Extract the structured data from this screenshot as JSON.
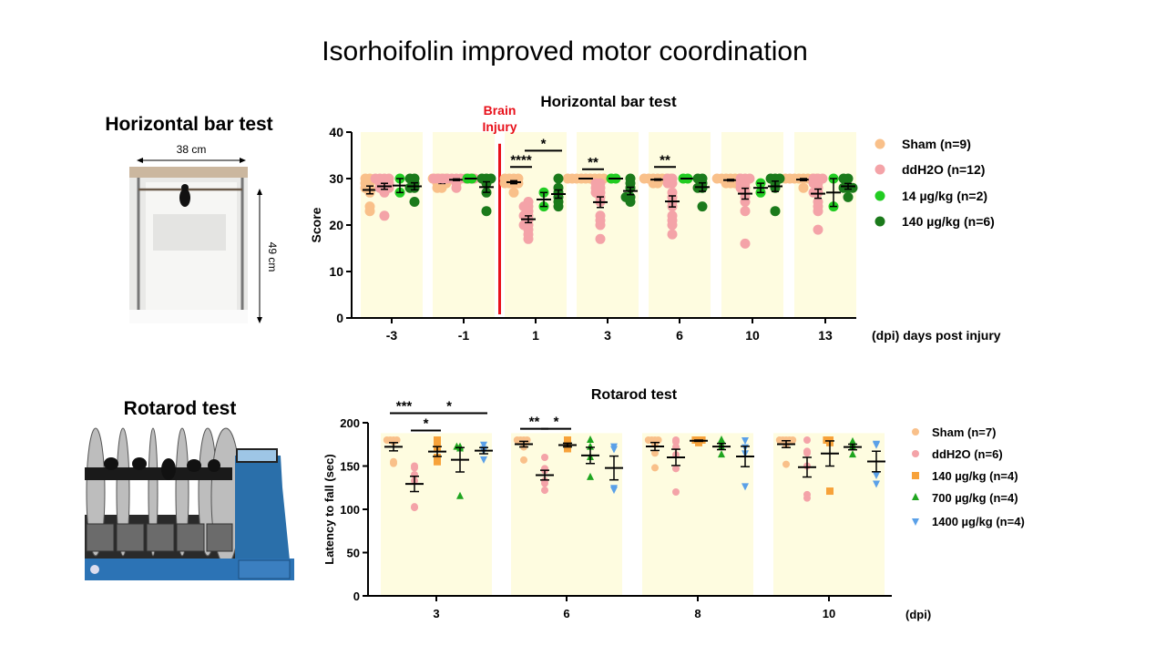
{
  "slide": {
    "title": "Isorhoifolin improved motor coordination",
    "horizontal_bar_label": "Horizontal bar test",
    "rotarod_label": "Rotarod test",
    "photo_width_label": "38 cm",
    "photo_height_label": "49 cm"
  },
  "chart_data": [
    {
      "type": "scatter",
      "title": "Horizontal bar test",
      "xlabel": "(dpi)  days post injury",
      "ylabel": "Score",
      "ylim": [
        0,
        40
      ],
      "yticks": [
        "0",
        "10",
        "20",
        "30",
        "40"
      ],
      "categories": [
        "-3",
        "-1",
        "1",
        "3",
        "6",
        "10",
        "13"
      ],
      "marker_annotation": {
        "label_line1": "Brain",
        "label_line2": "Injury",
        "between": [
          "-1",
          "1"
        ],
        "color": "#e8101a"
      },
      "legend_position": "right",
      "series": [
        {
          "name": "Sham (n=9)",
          "color": "#f9c08a",
          "marker": "circle",
          "values": [
            [
              30,
              29,
              28,
              27,
              24,
              23,
              30,
              29,
              28
            ],
            [
              30,
              30,
              29,
              29,
              28,
              30,
              30,
              29,
              28
            ],
            [
              30,
              30,
              29,
              29,
              27,
              30,
              30,
              29,
              29
            ],
            [
              30,
              30,
              30,
              30,
              30,
              30,
              30,
              30,
              30
            ],
            [
              30,
              30,
              30,
              29,
              29,
              30,
              30,
              30,
              30
            ],
            [
              30,
              30,
              29,
              29,
              30,
              30,
              30,
              30,
              29
            ],
            [
              30,
              30,
              28,
              30,
              30,
              30,
              30,
              30,
              30
            ]
          ]
        },
        {
          "name": "ddH2O (n=12)",
          "color": "#f4a3a8",
          "marker": "circle",
          "values": [
            [
              30,
              30,
              29,
              29,
              28,
              28,
              27,
              22,
              30,
              29,
              28,
              30
            ],
            [
              30,
              30,
              30,
              29,
              28,
              30,
              30,
              30,
              30,
              30,
              30,
              30
            ],
            [
              25,
              24,
              23,
              22,
              21,
              20,
              19,
              18,
              17,
              24,
              22,
              20
            ],
            [
              29,
              28,
              27,
              27,
              26,
              25,
              22,
              21,
              20,
              17,
              28,
              29
            ],
            [
              30,
              29,
              27,
              26,
              25,
              24,
              22,
              21,
              20,
              18,
              29,
              30
            ],
            [
              30,
              29,
              28,
              26,
              25,
              23,
              16,
              30,
              29,
              28,
              30,
              27
            ],
            [
              30,
              29,
              27,
              25,
              24,
              23,
              19,
              30,
              28,
              29,
              30,
              27
            ]
          ]
        },
        {
          "name": "14 µg/kg (n=2)",
          "color": "#22cc22",
          "marker": "circle",
          "values": [
            [
              30,
              27
            ],
            [
              30,
              30
            ],
            [
              27,
              24
            ],
            [
              30,
              30
            ],
            [
              30,
              30
            ],
            [
              29,
              27
            ],
            [
              30,
              24
            ]
          ]
        },
        {
          "name": "140 µg/kg (n=6)",
          "color": "#1b7a1b",
          "marker": "circle",
          "values": [
            [
              30,
              30,
              29,
              28,
              28,
              25
            ],
            [
              30,
              30,
              29,
              27,
              23,
              30
            ],
            [
              30,
              28,
              27,
              26,
              25,
              24
            ],
            [
              30,
              29,
              28,
              26,
              26,
              25
            ],
            [
              30,
              29,
              28,
              28,
              24,
              30
            ],
            [
              30,
              30,
              29,
              28,
              23,
              30
            ],
            [
              30,
              28,
              28,
              26,
              30,
              28
            ]
          ]
        }
      ],
      "significance": [
        {
          "label": "****",
          "category": "1",
          "from_series": 0,
          "to_series": 1,
          "y": 32.5
        },
        {
          "label": "*",
          "category": "1",
          "from_series": 1,
          "to_series": 3,
          "y": 36
        },
        {
          "label": "**",
          "category": "3",
          "from_series": 0,
          "to_series": 1,
          "y": 32
        },
        {
          "label": "**",
          "category": "6",
          "from_series": 0,
          "to_series": 1,
          "y": 32.5
        }
      ]
    },
    {
      "type": "scatter",
      "title": "Rotarod test",
      "xlabel": "(dpi)",
      "ylabel": "Latency to fall (sec)",
      "ylim": [
        0,
        200
      ],
      "yticks": [
        "0",
        "50",
        "100",
        "150",
        "200"
      ],
      "categories": [
        "3",
        "6",
        "8",
        "10"
      ],
      "legend_position": "right",
      "series": [
        {
          "name": "Sham (n=7)",
          "color": "#f9c08a",
          "marker": "circle",
          "values": [
            [
              180,
              180,
              180,
              180,
              178,
              155,
              153
            ],
            [
              180,
              180,
              180,
              180,
              178,
              172,
              157
            ],
            [
              180,
              180,
              180,
              180,
              175,
              165,
              148
            ],
            [
              180,
              180,
              180,
              180,
              180,
              175,
              152
            ]
          ]
        },
        {
          "name": "ddH2O (n=6)",
          "color": "#f4a3a8",
          "marker": "circle",
          "values": [
            [
              150,
              148,
              140,
              133,
              103,
              102
            ],
            [
              160,
              147,
              145,
              133,
              130,
              122
            ],
            [
              180,
              178,
              172,
              163,
              147,
              120
            ],
            [
              180,
              167,
              165,
              150,
              117,
              113
            ]
          ]
        },
        {
          "name": "140 µg/kg (n=4)",
          "color": "#f7a23a",
          "marker": "square",
          "values": [
            [
              180,
              172,
              160,
              155
            ],
            [
              180,
              175,
              172,
              170
            ],
            [
              180,
              180,
              180,
              177
            ],
            [
              180,
              180,
              177,
              121
            ]
          ]
        },
        {
          "name": "700 µg/kg (n=4)",
          "color": "#1fa51f",
          "marker": "triangle-up",
          "values": [
            [
              172,
              172,
              170,
              115
            ],
            [
              180,
              172,
              160,
              137
            ],
            [
              180,
              175,
              172,
              163
            ],
            [
              178,
              175,
              172,
              163
            ]
          ]
        },
        {
          "name": "1400 µg/kg (n=4)",
          "color": "#5aa0e8",
          "marker": "triangle-down",
          "values": [
            [
              175,
              170,
              168,
              158
            ],
            [
              173,
              170,
              123,
              125
            ],
            [
              180,
              172,
              165,
              127
            ],
            [
              176,
              175,
              140,
              130
            ]
          ]
        }
      ],
      "significance": [
        {
          "label": "***",
          "category": "3",
          "from_series": 0,
          "to_series": 1,
          "y": 211
        },
        {
          "label": "*",
          "category": "3",
          "from_series": 1,
          "to_series": 2,
          "y": 191
        },
        {
          "label": "*",
          "category": "3",
          "from_series": 1,
          "to_series": 4,
          "y": 211
        },
        {
          "label": "**",
          "category": "6",
          "from_series": 0,
          "to_series": 1,
          "y": 193
        },
        {
          "label": "*",
          "category": "6",
          "from_series": 1,
          "to_series": 2,
          "y": 193
        }
      ]
    }
  ]
}
